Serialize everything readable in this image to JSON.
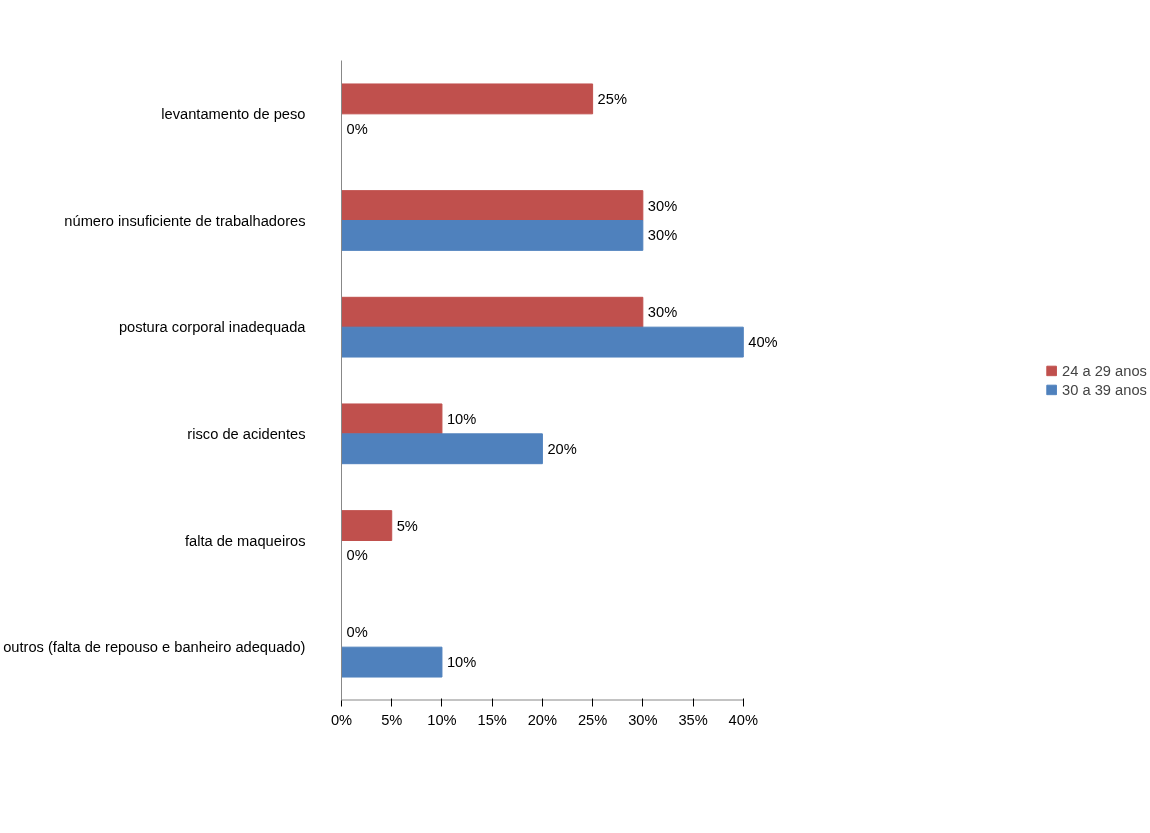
{
  "chart_data": {
    "type": "bar",
    "orientation": "horizontal",
    "categories": [
      "levantamento de peso",
      "número insuficiente de trabalhadores",
      "postura corporal inadequada",
      "risco de acidentes",
      "falta de maqueiros",
      "outros (falta de repouso e banheiro adequado)"
    ],
    "series": [
      {
        "name": "24 a 29 anos",
        "color": "#c0504d",
        "values": [
          25,
          30,
          30,
          10,
          5,
          0
        ],
        "value_labels": [
          "25%",
          "30%",
          "30%",
          "10%",
          "5%",
          "0%"
        ]
      },
      {
        "name": "30 a 39 anos",
        "color": "#4f81bd",
        "values": [
          0,
          30,
          40,
          20,
          0,
          10
        ],
        "value_labels": [
          "0%",
          "30%",
          "40%",
          "20%",
          "0%",
          "10%"
        ]
      }
    ],
    "xlim": [
      0,
      40
    ],
    "xticks": [
      {
        "value": 0,
        "label": "0%"
      },
      {
        "value": 5,
        "label": "5%"
      },
      {
        "value": 10,
        "label": "10%"
      },
      {
        "value": 15,
        "label": "15%"
      },
      {
        "value": 20,
        "label": "20%"
      },
      {
        "value": 25,
        "label": "25%"
      },
      {
        "value": 30,
        "label": "30%"
      },
      {
        "value": 35,
        "label": "35%"
      },
      {
        "value": 40,
        "label": "40%"
      }
    ],
    "grid": false,
    "legend": "right"
  }
}
